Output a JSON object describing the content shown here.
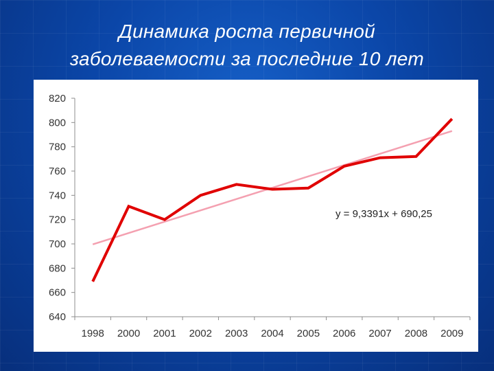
{
  "slide": {
    "title_line1": "Динамика роста первичной",
    "title_line2": "заболеваемости за последние 10 лет"
  },
  "chart_data": {
    "type": "line",
    "categories": [
      "1998",
      "2000",
      "2001",
      "2002",
      "2003",
      "2004",
      "2005",
      "2006",
      "2007",
      "2008",
      "2009"
    ],
    "series": [
      {
        "values": [
          669,
          731,
          720,
          740,
          749,
          745,
          746,
          764,
          771,
          772,
          803
        ],
        "color": "#e00000"
      }
    ],
    "trendline": {
      "equation": "y = 9,3391x + 690,25",
      "slope": 9.3391,
      "intercept": 690.25,
      "color": "#f4a0b0"
    },
    "ylim": [
      640,
      820
    ],
    "yticks": [
      "640",
      "660",
      "680",
      "700",
      "720",
      "740",
      "760",
      "780",
      "800",
      "820"
    ],
    "grid": false,
    "title": "",
    "xlabel": "",
    "ylabel": ""
  }
}
